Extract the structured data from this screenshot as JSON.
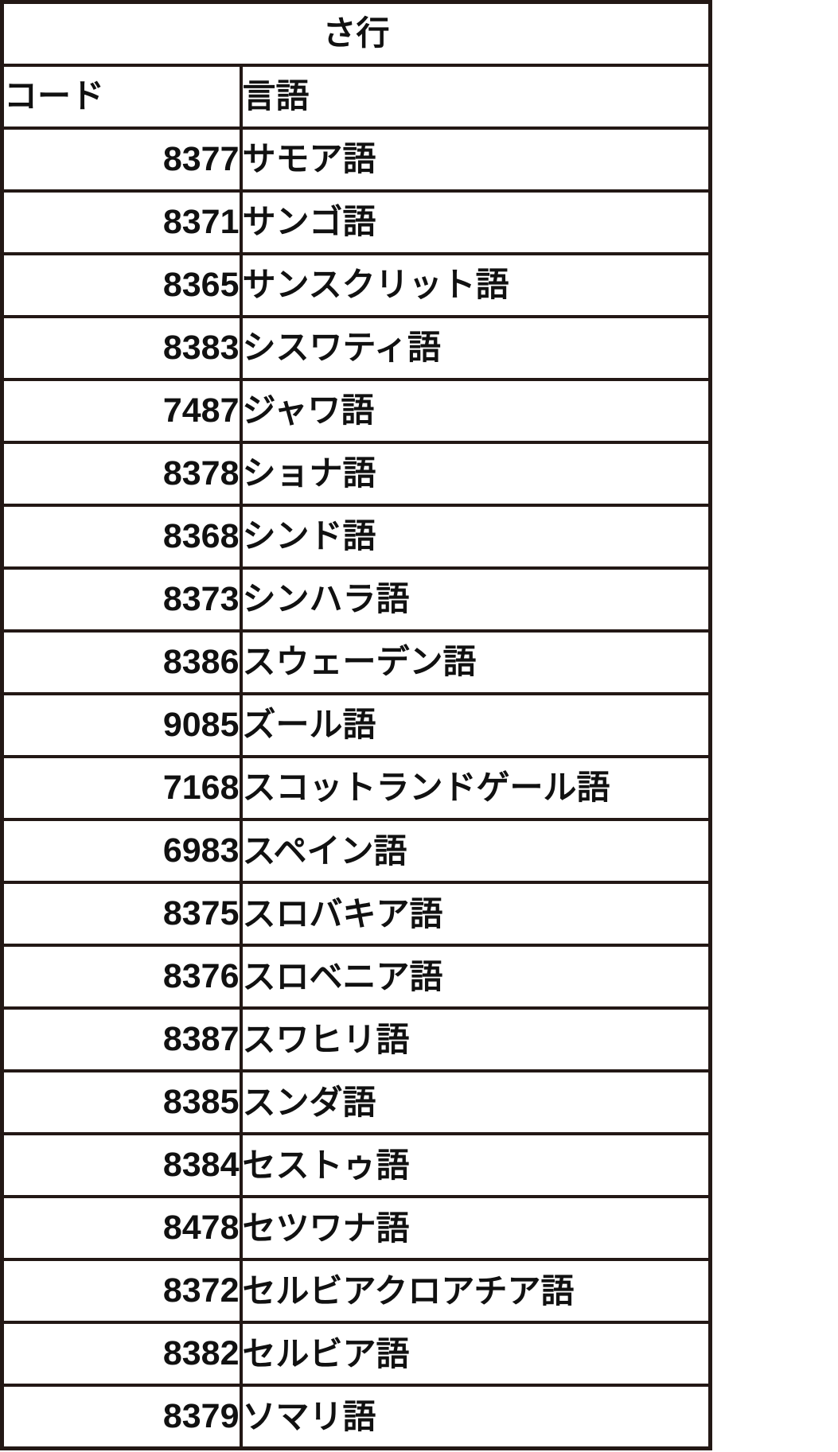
{
  "colors": {
    "border": "#231815",
    "text": "#111111",
    "background": "#ffffff"
  },
  "table": {
    "title": "さ行",
    "columns": [
      "コード",
      "言語"
    ],
    "rows": [
      {
        "code": "8377",
        "language": "サモア語"
      },
      {
        "code": "8371",
        "language": "サンゴ語"
      },
      {
        "code": "8365",
        "language": "サンスクリット語"
      },
      {
        "code": "8383",
        "language": "シスワティ語"
      },
      {
        "code": "7487",
        "language": "ジャワ語"
      },
      {
        "code": "8378",
        "language": "ショナ語"
      },
      {
        "code": "8368",
        "language": "シンド語"
      },
      {
        "code": "8373",
        "language": "シンハラ語"
      },
      {
        "code": "8386",
        "language": "スウェーデン語"
      },
      {
        "code": "9085",
        "language": "ズール語"
      },
      {
        "code": "7168",
        "language": "スコットランドゲール語"
      },
      {
        "code": "6983",
        "language": "スペイン語"
      },
      {
        "code": "8375",
        "language": "スロバキア語"
      },
      {
        "code": "8376",
        "language": "スロベニア語"
      },
      {
        "code": "8387",
        "language": "スワヒリ語"
      },
      {
        "code": "8385",
        "language": "スンダ語"
      },
      {
        "code": "8384",
        "language": "セストゥ語"
      },
      {
        "code": "8478",
        "language": "セツワナ語"
      },
      {
        "code": "8372",
        "language": "セルビアクロアチア語"
      },
      {
        "code": "8382",
        "language": "セルビア語"
      },
      {
        "code": "8379",
        "language": "ソマリ語"
      }
    ]
  }
}
